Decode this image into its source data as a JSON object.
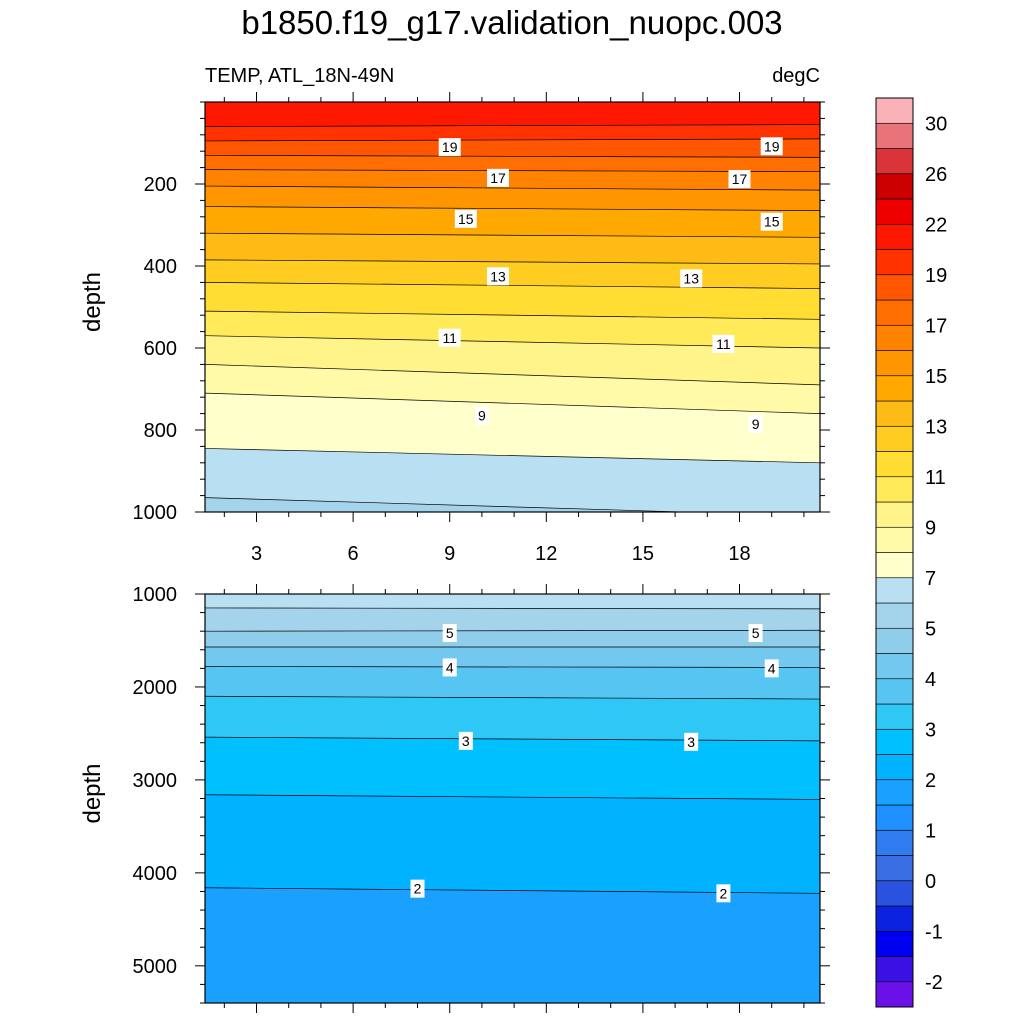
{
  "chart_data": {
    "type": "contour",
    "title": "b1850.f19_g17.validation_nuopc.003",
    "subtitle_left": "TEMP, ATL_18N-49N",
    "subtitle_right": "degC",
    "xlabel": "",
    "ylabel": "depth",
    "xlim": [
      1.4,
      20.5
    ],
    "x_ticks": [
      3,
      6,
      9,
      12,
      15,
      18
    ],
    "x_tick_labels": [
      "3",
      "6",
      "9",
      "12",
      "15",
      "18"
    ],
    "panels": [
      {
        "name": "upper",
        "ylim": [
          0,
          1000
        ],
        "y_ticks": [
          200,
          400,
          600,
          800,
          1000
        ],
        "y_tick_labels": [
          "200",
          "400",
          "600",
          "800",
          "1000"
        ],
        "x_tick_labels_visible": true,
        "isotherms": [
          {
            "level": 20,
            "depth_left": 60,
            "depth_right": 55
          },
          {
            "level": 19,
            "depth_left": 95,
            "depth_right": 90
          },
          {
            "level": 18,
            "depth_left": 130,
            "depth_right": 135
          },
          {
            "level": 17,
            "depth_left": 165,
            "depth_right": 170
          },
          {
            "level": 16,
            "depth_left": 205,
            "depth_right": 215
          },
          {
            "level": 15,
            "depth_left": 255,
            "depth_right": 265
          },
          {
            "level": 14,
            "depth_left": 320,
            "depth_right": 330
          },
          {
            "level": 13,
            "depth_left": 385,
            "depth_right": 395
          },
          {
            "level": 12,
            "depth_left": 440,
            "depth_right": 455
          },
          {
            "level": 11,
            "depth_left": 510,
            "depth_right": 530
          },
          {
            "level": 10,
            "depth_left": 570,
            "depth_right": 600
          },
          {
            "level": 9,
            "depth_left": 640,
            "depth_right": 690
          },
          {
            "level": 8,
            "depth_left": 710,
            "depth_right": 760
          },
          {
            "level": 7,
            "depth_left": 845,
            "depth_right": 880
          },
          {
            "level": 6,
            "depth_left": 965,
            "depth_right": 1010
          }
        ],
        "labels": [
          {
            "text": "19",
            "x": 9.0,
            "depth": 110
          },
          {
            "text": "19",
            "x": 19.0,
            "depth": 108
          },
          {
            "text": "17",
            "x": 10.5,
            "depth": 185
          },
          {
            "text": "17",
            "x": 18.0,
            "depth": 188
          },
          {
            "text": "15",
            "x": 9.5,
            "depth": 285
          },
          {
            "text": "15",
            "x": 19.0,
            "depth": 292
          },
          {
            "text": "13",
            "x": 10.5,
            "depth": 425
          },
          {
            "text": "13",
            "x": 16.5,
            "depth": 430
          },
          {
            "text": "11",
            "x": 9.0,
            "depth": 575
          },
          {
            "text": "11",
            "x": 17.5,
            "depth": 590
          },
          {
            "text": "9",
            "x": 10.0,
            "depth": 765
          },
          {
            "text": "9",
            "x": 18.5,
            "depth": 785
          }
        ]
      },
      {
        "name": "lower",
        "ylim": [
          1000,
          5400
        ],
        "y_ticks": [
          1000,
          2000,
          3000,
          4000,
          5000
        ],
        "y_tick_labels": [
          "1000",
          "2000",
          "3000",
          "4000",
          "5000"
        ],
        "x_tick_labels_visible": false,
        "isotherms": [
          {
            "level": 6,
            "depth_left": 1150,
            "depth_right": 1160
          },
          {
            "level": 5,
            "depth_left": 1400,
            "depth_right": 1390
          },
          {
            "level": 4.5,
            "depth_left": 1570,
            "depth_right": 1570
          },
          {
            "level": 4,
            "depth_left": 1780,
            "depth_right": 1790
          },
          {
            "level": 3.5,
            "depth_left": 2100,
            "depth_right": 2130
          },
          {
            "level": 3,
            "depth_left": 2540,
            "depth_right": 2580
          },
          {
            "level": 2.5,
            "depth_left": 3160,
            "depth_right": 3210
          },
          {
            "level": 2,
            "depth_left": 4160,
            "depth_right": 4220
          }
        ],
        "labels": [
          {
            "text": "5",
            "x": 9.0,
            "depth": 1420
          },
          {
            "text": "5",
            "x": 18.5,
            "depth": 1420
          },
          {
            "text": "4",
            "x": 9.0,
            "depth": 1790
          },
          {
            "text": "4",
            "x": 19.0,
            "depth": 1800
          },
          {
            "text": "3",
            "x": 9.5,
            "depth": 2580
          },
          {
            "text": "3",
            "x": 16.5,
            "depth": 2590
          },
          {
            "text": "2",
            "x": 8.0,
            "depth": 4170
          },
          {
            "text": "2",
            "x": 17.5,
            "depth": 4220
          }
        ]
      }
    ],
    "colorbar": {
      "levels": [
        -2.5,
        -2,
        -1.5,
        -1,
        -0.5,
        0,
        0.5,
        1,
        1.5,
        2,
        2.5,
        3,
        3.5,
        4,
        4.5,
        5,
        6,
        7,
        8,
        9,
        10,
        11,
        12,
        13,
        14,
        15,
        16,
        17,
        18,
        19,
        20,
        22,
        24,
        26,
        28,
        30,
        32
      ],
      "colors": [
        "#6a11e8",
        "#3a10e4",
        "#0000f0",
        "#0b22e0",
        "#2a52df",
        "#3a6ee4",
        "#2e7cef",
        "#1e90ff",
        "#1aa0ff",
        "#00b2ff",
        "#00c0ff",
        "#2fc7f6",
        "#56c5f2",
        "#73c8f0",
        "#90cdeb",
        "#a3d4ec",
        "#b8e0f2",
        "#ffffcc",
        "#fffaa8",
        "#fff48a",
        "#ffea5a",
        "#ffdd33",
        "#ffcc22",
        "#ffbb15",
        "#ffa800",
        "#ff9600",
        "#ff8200",
        "#ff6e00",
        "#ff5600",
        "#ff3200",
        "#ff1800",
        "#ee0000",
        "#cc0000",
        "#d8343a",
        "#e8747a",
        "#f8b2b8"
      ],
      "tick_values": [
        -2,
        -1,
        0,
        1,
        2,
        3,
        4,
        5,
        7,
        9,
        11,
        13,
        15,
        17,
        19,
        22,
        26,
        30
      ],
      "tick_labels": [
        "-2",
        "-1",
        "0",
        "1",
        "2",
        "3",
        "4",
        "5",
        "7",
        "9",
        "11",
        "13",
        "15",
        "17",
        "19",
        "22",
        "26",
        "30"
      ]
    }
  }
}
